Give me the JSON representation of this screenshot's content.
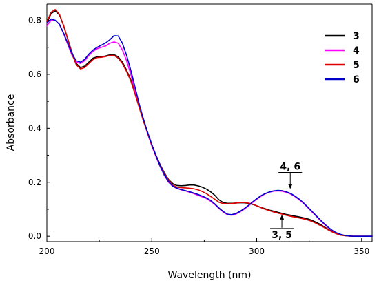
{
  "chart_data": {
    "type": "line",
    "xlabel": "Wavelength (nm)",
    "ylabel": "Absorbance",
    "xlim": [
      200,
      355
    ],
    "ylim": [
      -0.02,
      0.86
    ],
    "xticks": [
      "200",
      "250",
      "300",
      "350"
    ],
    "xtick_values": [
      200,
      250,
      300,
      350
    ],
    "yticks": [
      "0.0",
      "0.2",
      "0.4",
      "0.6",
      "0.8"
    ],
    "ytick_values": [
      0.0,
      0.2,
      0.4,
      0.6,
      0.8
    ],
    "legend_position": "top-right",
    "series": [
      {
        "name": "3",
        "color": "#000000",
        "x": [
          200,
          202,
          204,
          206,
          208,
          210,
          212,
          214,
          216,
          218,
          220,
          222,
          224,
          226,
          228,
          230,
          232,
          234,
          236,
          238,
          240,
          242,
          244,
          246,
          248,
          250,
          252,
          254,
          256,
          258,
          260,
          262,
          264,
          266,
          268,
          270,
          272,
          274,
          276,
          278,
          280,
          282,
          284,
          286,
          288,
          290,
          292,
          294,
          296,
          298,
          300,
          302,
          304,
          306,
          308,
          310,
          312,
          314,
          316,
          318,
          320,
          322,
          324,
          326,
          328,
          330,
          332,
          334,
          336,
          338,
          340,
          342,
          344,
          346,
          348,
          350,
          352,
          355
        ],
        "y": [
          0.79,
          0.825,
          0.835,
          0.82,
          0.78,
          0.73,
          0.68,
          0.64,
          0.625,
          0.63,
          0.645,
          0.66,
          0.665,
          0.665,
          0.668,
          0.672,
          0.673,
          0.665,
          0.645,
          0.615,
          0.58,
          0.53,
          0.48,
          0.43,
          0.385,
          0.34,
          0.3,
          0.265,
          0.235,
          0.21,
          0.195,
          0.188,
          0.187,
          0.188,
          0.19,
          0.19,
          0.187,
          0.182,
          0.175,
          0.165,
          0.152,
          0.135,
          0.125,
          0.122,
          0.122,
          0.123,
          0.124,
          0.124,
          0.122,
          0.118,
          0.113,
          0.107,
          0.102,
          0.097,
          0.093,
          0.089,
          0.085,
          0.081,
          0.078,
          0.075,
          0.072,
          0.069,
          0.065,
          0.06,
          0.053,
          0.045,
          0.036,
          0.026,
          0.017,
          0.01,
          0.005,
          0.002,
          0.001,
          0.0,
          0.0,
          0.0,
          0.0,
          0.0
        ]
      },
      {
        "name": "4",
        "color": "#ff00ff",
        "x": [
          200,
          202,
          204,
          206,
          208,
          210,
          212,
          214,
          216,
          218,
          220,
          222,
          224,
          226,
          228,
          230,
          232,
          234,
          236,
          238,
          240,
          242,
          244,
          246,
          248,
          250,
          252,
          254,
          256,
          258,
          260,
          262,
          264,
          266,
          268,
          270,
          272,
          274,
          276,
          278,
          280,
          282,
          284,
          286,
          288,
          290,
          292,
          294,
          296,
          298,
          300,
          302,
          304,
          306,
          308,
          310,
          312,
          314,
          316,
          318,
          320,
          322,
          324,
          326,
          328,
          330,
          332,
          334,
          336,
          338,
          340,
          342,
          344,
          346,
          348,
          350,
          352,
          355
        ],
        "y": [
          0.78,
          0.8,
          0.8,
          0.785,
          0.75,
          0.71,
          0.67,
          0.645,
          0.64,
          0.65,
          0.67,
          0.685,
          0.695,
          0.7,
          0.705,
          0.715,
          0.72,
          0.715,
          0.69,
          0.65,
          0.6,
          0.54,
          0.48,
          0.43,
          0.38,
          0.335,
          0.295,
          0.258,
          0.225,
          0.2,
          0.185,
          0.177,
          0.172,
          0.168,
          0.163,
          0.158,
          0.152,
          0.146,
          0.14,
          0.13,
          0.118,
          0.103,
          0.09,
          0.08,
          0.078,
          0.082,
          0.09,
          0.1,
          0.112,
          0.125,
          0.137,
          0.148,
          0.157,
          0.163,
          0.167,
          0.168,
          0.167,
          0.163,
          0.157,
          0.148,
          0.137,
          0.124,
          0.109,
          0.093,
          0.077,
          0.061,
          0.046,
          0.032,
          0.021,
          0.012,
          0.006,
          0.003,
          0.001,
          0.0,
          0.0,
          0.0,
          0.0,
          0.0
        ]
      },
      {
        "name": "5",
        "color": "#e00000",
        "x": [
          200,
          202,
          204,
          206,
          208,
          210,
          212,
          214,
          216,
          218,
          220,
          222,
          224,
          226,
          228,
          230,
          232,
          234,
          236,
          238,
          240,
          242,
          244,
          246,
          248,
          250,
          252,
          254,
          256,
          258,
          260,
          262,
          264,
          266,
          268,
          270,
          272,
          274,
          276,
          278,
          280,
          282,
          284,
          286,
          288,
          290,
          292,
          294,
          296,
          298,
          300,
          302,
          304,
          306,
          308,
          310,
          312,
          314,
          316,
          318,
          320,
          322,
          324,
          326,
          328,
          330,
          332,
          334,
          336,
          338,
          340,
          342,
          344,
          346,
          348,
          350,
          352,
          355
        ],
        "y": [
          0.795,
          0.83,
          0.84,
          0.822,
          0.78,
          0.728,
          0.676,
          0.635,
          0.62,
          0.625,
          0.64,
          0.655,
          0.662,
          0.663,
          0.666,
          0.67,
          0.67,
          0.66,
          0.64,
          0.61,
          0.575,
          0.527,
          0.477,
          0.427,
          0.382,
          0.338,
          0.298,
          0.262,
          0.232,
          0.207,
          0.19,
          0.182,
          0.18,
          0.179,
          0.178,
          0.176,
          0.172,
          0.166,
          0.158,
          0.148,
          0.137,
          0.126,
          0.121,
          0.12,
          0.121,
          0.123,
          0.125,
          0.125,
          0.123,
          0.119,
          0.113,
          0.106,
          0.1,
          0.095,
          0.09,
          0.086,
          0.082,
          0.078,
          0.074,
          0.071,
          0.068,
          0.065,
          0.061,
          0.056,
          0.049,
          0.041,
          0.033,
          0.024,
          0.016,
          0.009,
          0.004,
          0.002,
          0.001,
          0.0,
          0.0,
          0.0,
          0.0,
          0.0
        ]
      },
      {
        "name": "6",
        "color": "#0000cc",
        "x": [
          200,
          202,
          204,
          206,
          208,
          210,
          212,
          214,
          216,
          218,
          220,
          222,
          224,
          226,
          228,
          230,
          232,
          234,
          236,
          238,
          240,
          242,
          244,
          246,
          248,
          250,
          252,
          254,
          256,
          258,
          260,
          262,
          264,
          266,
          268,
          270,
          272,
          274,
          276,
          278,
          280,
          282,
          284,
          286,
          288,
          290,
          292,
          294,
          296,
          298,
          300,
          302,
          304,
          306,
          308,
          310,
          312,
          314,
          316,
          318,
          320,
          322,
          324,
          326,
          328,
          330,
          332,
          334,
          336,
          338,
          340,
          342,
          344,
          346,
          348,
          350,
          352,
          355
        ],
        "y": [
          0.79,
          0.805,
          0.8,
          0.785,
          0.752,
          0.714,
          0.676,
          0.65,
          0.645,
          0.655,
          0.675,
          0.69,
          0.7,
          0.708,
          0.716,
          0.728,
          0.743,
          0.742,
          0.715,
          0.67,
          0.615,
          0.553,
          0.49,
          0.435,
          0.385,
          0.34,
          0.298,
          0.26,
          0.228,
          0.202,
          0.186,
          0.178,
          0.173,
          0.169,
          0.165,
          0.16,
          0.155,
          0.149,
          0.142,
          0.133,
          0.12,
          0.105,
          0.092,
          0.082,
          0.08,
          0.084,
          0.092,
          0.102,
          0.114,
          0.127,
          0.139,
          0.15,
          0.158,
          0.164,
          0.168,
          0.17,
          0.169,
          0.165,
          0.159,
          0.15,
          0.139,
          0.126,
          0.111,
          0.095,
          0.079,
          0.063,
          0.048,
          0.034,
          0.022,
          0.013,
          0.007,
          0.003,
          0.001,
          0.0,
          0.0,
          0.0,
          0.0,
          0.0
        ]
      }
    ],
    "annotations": [
      {
        "text": "4, 6",
        "x": 316,
        "y": 0.17,
        "label_position": "above",
        "underline": true
      },
      {
        "text": "3, 5",
        "x": 312,
        "y": 0.085,
        "label_position": "below",
        "overline": true
      }
    ]
  }
}
